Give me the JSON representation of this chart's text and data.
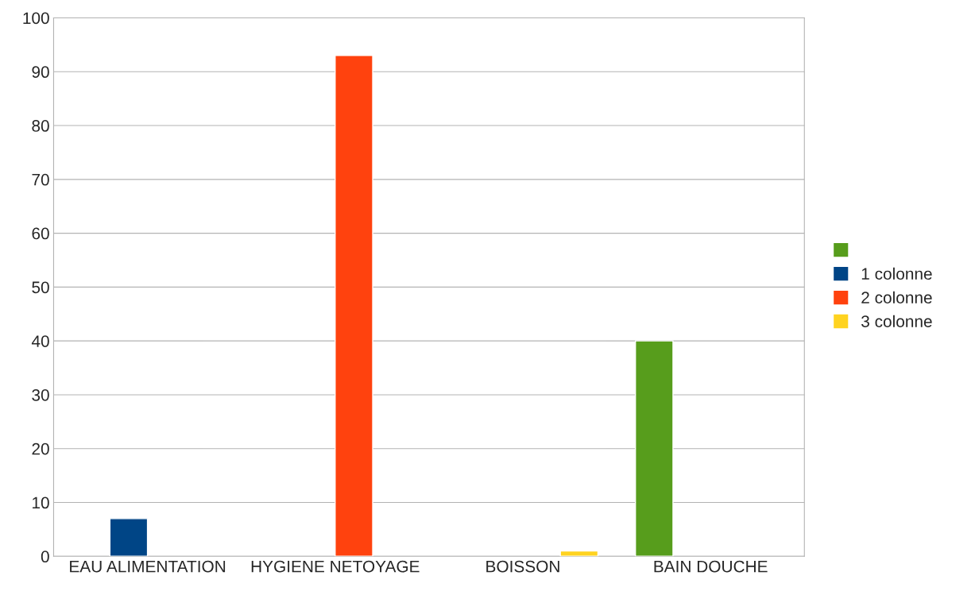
{
  "chart_data": {
    "type": "bar",
    "categories": [
      "EAU ALIMENTATION",
      "HYGIENE NETOYAGE",
      "BOISSON",
      "BAIN DOUCHE"
    ],
    "series": [
      {
        "color": "#579d1c",
        "values": [
          null,
          null,
          null,
          40
        ]
      },
      {
        "name": "1 colonne",
        "color": "#004586",
        "values": [
          7,
          null,
          null,
          null
        ]
      },
      {
        "name": "2 colonne",
        "color": "#ff420e",
        "values": [
          null,
          93,
          null,
          null
        ]
      },
      {
        "name": "3 colonne",
        "color": "#ffd320",
        "values": [
          null,
          null,
          1,
          null
        ]
      }
    ],
    "ylim": [
      0,
      100
    ],
    "yticks": [
      0,
      10,
      20,
      30,
      40,
      50,
      60,
      70,
      80,
      90,
      100
    ],
    "grid": "y",
    "legend": "right"
  }
}
